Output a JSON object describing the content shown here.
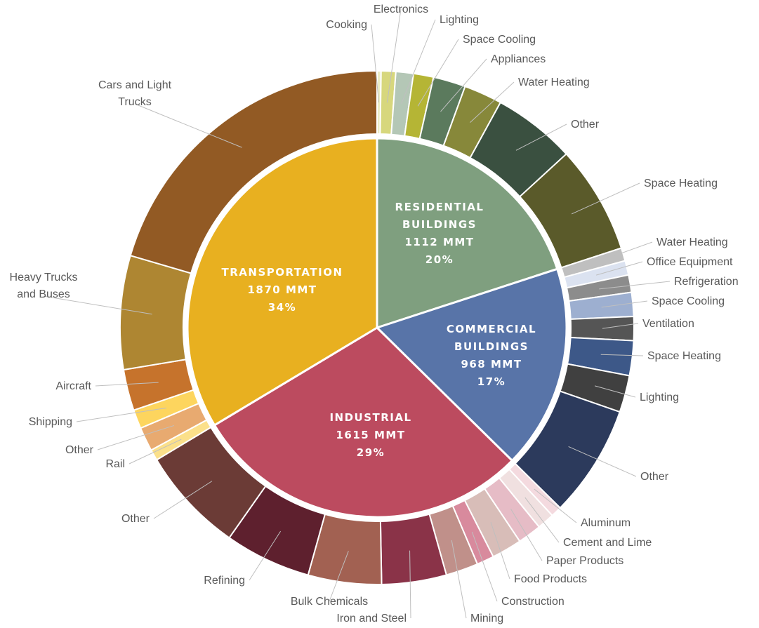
{
  "chart_data": {
    "type": "pie",
    "variant": "sunburst",
    "title": "",
    "inner": [
      {
        "name": "RESIDENTIAL BUILDINGS",
        "value": 1112,
        "unit": "MMT",
        "percent": "20%",
        "color": "#7f9f7f"
      },
      {
        "name": "COMMERCIAL BUILDINGS",
        "value": 968,
        "unit": "MMT",
        "percent": "17%",
        "color": "#5874a8"
      },
      {
        "name": "INDUSTRIAL",
        "value": 1615,
        "unit": "MMT",
        "percent": "29%",
        "color": "#bc4b5f"
      },
      {
        "name": "TRANSPORTATION",
        "value": 1870,
        "unit": "MMT",
        "percent": "34%",
        "color": "#e8b020"
      }
    ],
    "outer": [
      {
        "label": "Cooking",
        "parent": "RESIDENTIAL BUILDINGS",
        "value": 11,
        "color": "#eaecc6"
      },
      {
        "label": "Electronics",
        "parent": "RESIDENTIAL BUILDINGS",
        "value": 40,
        "color": "#d7d77d"
      },
      {
        "label": "Lighting",
        "parent": "RESIDENTIAL BUILDINGS",
        "value": 48,
        "color": "#b4c7b6"
      },
      {
        "label": "Space Cooling",
        "parent": "RESIDENTIAL BUILDINGS",
        "value": 55,
        "color": "#b5b535"
      },
      {
        "label": "Appliances",
        "parent": "RESIDENTIAL BUILDINGS",
        "value": 89,
        "color": "#5b7a5d"
      },
      {
        "label": "Water Heating",
        "parent": "RESIDENTIAL BUILDINGS",
        "value": 105,
        "color": "#87883a"
      },
      {
        "label": "Other",
        "parent": "RESIDENTIAL BUILDINGS",
        "value": 227,
        "color": "#3a5040"
      },
      {
        "label": "Space Heating",
        "parent": "RESIDENTIAL BUILDINGS",
        "value": 297,
        "color": "#5a5a2a"
      },
      {
        "label": "Water Heating",
        "parent": "COMMERCIAL BUILDINGS",
        "value": 30,
        "color": "#bfbfbf"
      },
      {
        "label": "Office Equipment",
        "parent": "COMMERCIAL BUILDINGS",
        "value": 33,
        "color": "#dbe2f0"
      },
      {
        "label": "Refrigeration",
        "parent": "COMMERCIAL BUILDINGS",
        "value": 40,
        "color": "#8c8c8c"
      },
      {
        "label": "Space Cooling",
        "parent": "COMMERCIAL BUILDINGS",
        "value": 55,
        "color": "#9dafd0"
      },
      {
        "label": "Ventilation",
        "parent": "COMMERCIAL BUILDINGS",
        "value": 55,
        "color": "#555555"
      },
      {
        "label": "Space Heating",
        "parent": "COMMERCIAL BUILDINGS",
        "value": 80,
        "color": "#3d5888"
      },
      {
        "label": "Lighting",
        "parent": "COMMERCIAL BUILDINGS",
        "value": 85,
        "color": "#404040"
      },
      {
        "label": "Other",
        "parent": "COMMERCIAL BUILDINGS",
        "value": 258,
        "color": "#2c3a5c"
      },
      {
        "label": "Aluminum",
        "parent": "INDUSTRIAL",
        "value": 25,
        "color": "#f4dadf"
      },
      {
        "label": "Cement and Lime",
        "parent": "INDUSTRIAL",
        "value": 40,
        "color": "#f0e0e0"
      },
      {
        "label": "Paper Products",
        "parent": "INDUSTRIAL",
        "value": 55,
        "color": "#e6bcc6"
      },
      {
        "label": "Food Products",
        "parent": "INDUSTRIAL",
        "value": 70,
        "color": "#d8bdb8"
      },
      {
        "label": "Construction",
        "parent": "INDUSTRIAL",
        "value": 40,
        "color": "#d88a9d"
      },
      {
        "label": "Mining",
        "parent": "INDUSTRIAL",
        "value": 75,
        "color": "#c0908a"
      },
      {
        "label": "Iron and Steel",
        "parent": "INDUSTRIAL",
        "value": 150,
        "color": "#8a3348"
      },
      {
        "label": "Bulk Chemicals",
        "parent": "INDUSTRIAL",
        "value": 170,
        "color": "#a26152"
      },
      {
        "label": "Refining",
        "parent": "INDUSTRIAL",
        "value": 200,
        "color": "#5e202e"
      },
      {
        "label": "Other",
        "parent": "INDUSTRIAL",
        "value": 245,
        "color": "#6b3b36"
      },
      {
        "label": "Rail",
        "parent": "TRANSPORTATION",
        "value": 35,
        "color": "#fbe08a"
      },
      {
        "label": "Other",
        "parent": "TRANSPORTATION",
        "value": 76,
        "color": "#e8aa70"
      },
      {
        "label": "Shipping",
        "parent": "TRANSPORTATION",
        "value": 60,
        "color": "#fdd55e"
      },
      {
        "label": "Aircraft",
        "parent": "TRANSPORTATION",
        "value": 130,
        "color": "#c6732c"
      },
      {
        "label": "Heavy Trucks and Buses",
        "parent": "TRANSPORTATION",
        "value": 360,
        "color": "#ae8632"
      },
      {
        "label": "Cars and Light Trucks",
        "parent": "TRANSPORTATION",
        "value": 1030,
        "color": "#925a24"
      }
    ]
  }
}
